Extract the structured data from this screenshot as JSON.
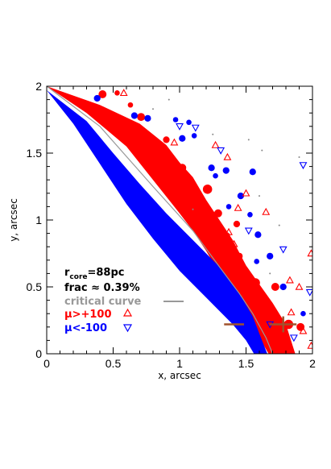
{
  "chart_data": {
    "type": "scatter",
    "xlabel": "x, arcsec",
    "ylabel": "y, arcsec",
    "xlim": [
      0,
      2
    ],
    "ylim": [
      0,
      2
    ],
    "xticks": [
      "0",
      "0.5",
      "1",
      "1.5",
      "2"
    ],
    "yticks": [
      "0",
      "0.5",
      "1",
      "1.5",
      "2"
    ],
    "annotations": {
      "rcore_main": "r",
      "rcore_sub": "core",
      "rcore_value": "=88pc",
      "frac": "frac ≈ 0.39%"
    },
    "legend": {
      "critical_curve": "critical curve",
      "mu_pos": "μ>+100",
      "mu_neg": "μ<-100"
    },
    "colors": {
      "mu_pos": "#ff0000",
      "mu_neg": "#0000ff",
      "critical_curve": "#999999",
      "cross": "#a0522d"
    },
    "band_pos_upper": [
      [
        0.0,
        2.0
      ],
      [
        0.4,
        1.86
      ],
      [
        0.7,
        1.72
      ],
      [
        0.9,
        1.56
      ],
      [
        1.0,
        1.43
      ],
      [
        1.1,
        1.32
      ],
      [
        1.2,
        1.15
      ],
      [
        1.3,
        1.0
      ],
      [
        1.4,
        0.85
      ],
      [
        1.5,
        0.66
      ],
      [
        1.6,
        0.52
      ],
      [
        1.7,
        0.38
      ],
      [
        1.8,
        0.22
      ],
      [
        1.87,
        0.0
      ]
    ],
    "band_pos_lower": [
      [
        0.0,
        2.0
      ],
      [
        0.3,
        1.8
      ],
      [
        0.6,
        1.55
      ],
      [
        0.8,
        1.3
      ],
      [
        1.0,
        1.05
      ],
      [
        1.1,
        0.92
      ],
      [
        1.2,
        0.77
      ],
      [
        1.3,
        0.6
      ],
      [
        1.4,
        0.45
      ],
      [
        1.5,
        0.3
      ],
      [
        1.6,
        0.12
      ],
      [
        1.67,
        0.0
      ]
    ],
    "band_neg_upper": [
      [
        0.0,
        1.97
      ],
      [
        0.3,
        1.74
      ],
      [
        0.5,
        1.5
      ],
      [
        0.7,
        1.27
      ],
      [
        0.9,
        1.05
      ],
      [
        1.1,
        0.85
      ],
      [
        1.3,
        0.65
      ],
      [
        1.45,
        0.45
      ],
      [
        1.55,
        0.28
      ],
      [
        1.62,
        0.1
      ],
      [
        1.66,
        0.0
      ]
    ],
    "band_neg_lower": [
      [
        0.0,
        1.97
      ],
      [
        0.2,
        1.72
      ],
      [
        0.4,
        1.42
      ],
      [
        0.6,
        1.12
      ],
      [
        0.8,
        0.86
      ],
      [
        1.0,
        0.62
      ],
      [
        1.2,
        0.42
      ],
      [
        1.4,
        0.22
      ],
      [
        1.5,
        0.1
      ],
      [
        1.56,
        0.0
      ]
    ],
    "critical_curve": [
      [
        0.0,
        2.0
      ],
      [
        0.4,
        1.7
      ],
      [
        0.8,
        1.25
      ],
      [
        1.1,
        0.92
      ],
      [
        1.3,
        0.65
      ],
      [
        1.45,
        0.45
      ],
      [
        1.55,
        0.3
      ],
      [
        1.65,
        0.12
      ],
      [
        1.7,
        0.0
      ]
    ],
    "blobs_pos": [
      [
        0.42,
        1.94,
        0.03
      ],
      [
        0.53,
        1.95,
        0.02
      ],
      [
        0.71,
        1.77,
        0.03
      ],
      [
        0.9,
        1.6,
        0.025
      ],
      [
        0.86,
        1.45,
        0.025
      ],
      [
        1.02,
        1.39,
        0.03
      ],
      [
        1.08,
        1.29,
        0.025
      ],
      [
        1.21,
        1.23,
        0.035
      ],
      [
        1.19,
        1.09,
        0.03
      ],
      [
        1.29,
        1.05,
        0.03
      ],
      [
        1.43,
        0.97,
        0.025
      ],
      [
        1.35,
        0.88,
        0.03
      ],
      [
        1.45,
        0.73,
        0.025
      ],
      [
        1.57,
        0.53,
        0.035
      ],
      [
        1.72,
        0.5,
        0.03
      ],
      [
        1.82,
        0.22,
        0.035
      ],
      [
        1.91,
        0.2,
        0.03
      ],
      [
        0.63,
        1.86,
        0.02
      ]
    ],
    "blobs_neg": [
      [
        0.38,
        1.91,
        0.025
      ],
      [
        0.66,
        1.78,
        0.025
      ],
      [
        0.76,
        1.76,
        0.025
      ],
      [
        0.97,
        1.75,
        0.02
      ],
      [
        1.07,
        1.73,
        0.02
      ],
      [
        1.02,
        1.61,
        0.025
      ],
      [
        1.11,
        1.63,
        0.02
      ],
      [
        1.24,
        1.39,
        0.025
      ],
      [
        1.35,
        1.37,
        0.025
      ],
      [
        1.55,
        1.36,
        0.025
      ],
      [
        1.27,
        1.33,
        0.02
      ],
      [
        1.46,
        1.18,
        0.025
      ],
      [
        1.37,
        1.1,
        0.02
      ],
      [
        1.53,
        1.04,
        0.02
      ],
      [
        1.59,
        0.89,
        0.025
      ],
      [
        1.68,
        0.73,
        0.025
      ],
      [
        1.58,
        0.69,
        0.02
      ],
      [
        1.78,
        0.5,
        0.025
      ],
      [
        1.93,
        0.3,
        0.02
      ]
    ],
    "markers_pos": [
      [
        0.58,
        1.95
      ],
      [
        0.96,
        1.58
      ],
      [
        1.27,
        1.56
      ],
      [
        1.36,
        1.47
      ],
      [
        1.5,
        1.2
      ],
      [
        1.44,
        1.09
      ],
      [
        1.65,
        1.06
      ],
      [
        1.37,
        0.91
      ],
      [
        1.41,
        0.82
      ],
      [
        1.99,
        0.75
      ],
      [
        1.83,
        0.55
      ],
      [
        1.9,
        0.5
      ],
      [
        1.93,
        0.17
      ],
      [
        1.84,
        0.31
      ],
      [
        1.99,
        0.06
      ]
    ],
    "markers_neg": [
      [
        1.0,
        1.7
      ],
      [
        1.12,
        1.69
      ],
      [
        1.31,
        1.52
      ],
      [
        1.93,
        1.41
      ],
      [
        1.86,
        0.12
      ],
      [
        1.68,
        0.22
      ],
      [
        1.78,
        0.78
      ],
      [
        1.98,
        0.46
      ],
      [
        1.52,
        0.92
      ]
    ],
    "dots": [
      [
        0.8,
        1.83
      ],
      [
        0.92,
        1.9
      ],
      [
        1.25,
        1.64
      ],
      [
        1.52,
        1.6
      ],
      [
        1.62,
        1.52
      ],
      [
        1.9,
        1.47
      ],
      [
        1.1,
        1.08
      ],
      [
        1.75,
        0.96
      ],
      [
        1.6,
        1.18
      ],
      [
        1.68,
        0.6
      ]
    ],
    "crosses": [
      [
        1.41,
        0.22,
        0.075
      ],
      [
        1.78,
        0.22,
        0.1
      ]
    ]
  }
}
